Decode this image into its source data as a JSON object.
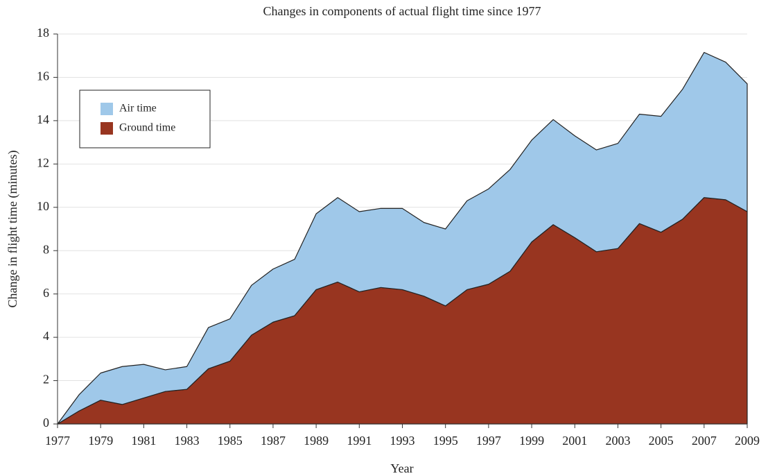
{
  "chart_data": {
    "type": "stacked_area",
    "title": "Changes in components of actual flight time since 1977",
    "x_label": "Year",
    "y_label": "Change in flight time (minutes)",
    "x": [
      1977,
      1978,
      1979,
      1980,
      1981,
      1982,
      1983,
      1984,
      1985,
      1986,
      1987,
      1988,
      1989,
      1990,
      1991,
      1992,
      1993,
      1994,
      1995,
      1996,
      1997,
      1998,
      1999,
      2000,
      2001,
      2002,
      2003,
      2004,
      2005,
      2006,
      2007,
      2008,
      2009
    ],
    "series": [
      {
        "name": "Air time",
        "color": "#9fc8e9",
        "values": [
          0,
          0.75,
          1.25,
          1.75,
          1.55,
          1.0,
          1.05,
          1.9,
          1.95,
          2.3,
          2.45,
          2.6,
          3.5,
          3.9,
          3.7,
          3.65,
          3.75,
          3.4,
          3.55,
          4.1,
          4.4,
          4.7,
          4.7,
          4.85,
          4.7,
          4.7,
          4.85,
          5.05,
          5.35,
          6.0,
          6.7,
          6.35,
          5.9
        ]
      },
      {
        "name": "Ground time",
        "color": "#983520",
        "values": [
          0,
          0.6,
          1.1,
          0.9,
          1.2,
          1.5,
          1.6,
          2.55,
          2.9,
          4.1,
          4.7,
          5.0,
          6.2,
          6.55,
          6.1,
          6.3,
          6.2,
          5.9,
          5.45,
          6.2,
          6.45,
          7.05,
          8.4,
          9.2,
          8.6,
          7.95,
          8.1,
          9.25,
          8.85,
          9.45,
          10.45,
          10.35,
          9.8
        ]
      }
    ],
    "xlim": [
      1977,
      2009
    ],
    "xticks": [
      1977,
      1979,
      1981,
      1983,
      1985,
      1987,
      1989,
      1991,
      1993,
      1995,
      1997,
      1999,
      2001,
      2003,
      2005,
      2007,
      2009
    ],
    "ylim": [
      0,
      18
    ],
    "yticks": [
      0,
      2,
      4,
      6,
      8,
      10,
      12,
      14,
      16,
      18
    ],
    "grid": true,
    "legend": "upper left"
  }
}
